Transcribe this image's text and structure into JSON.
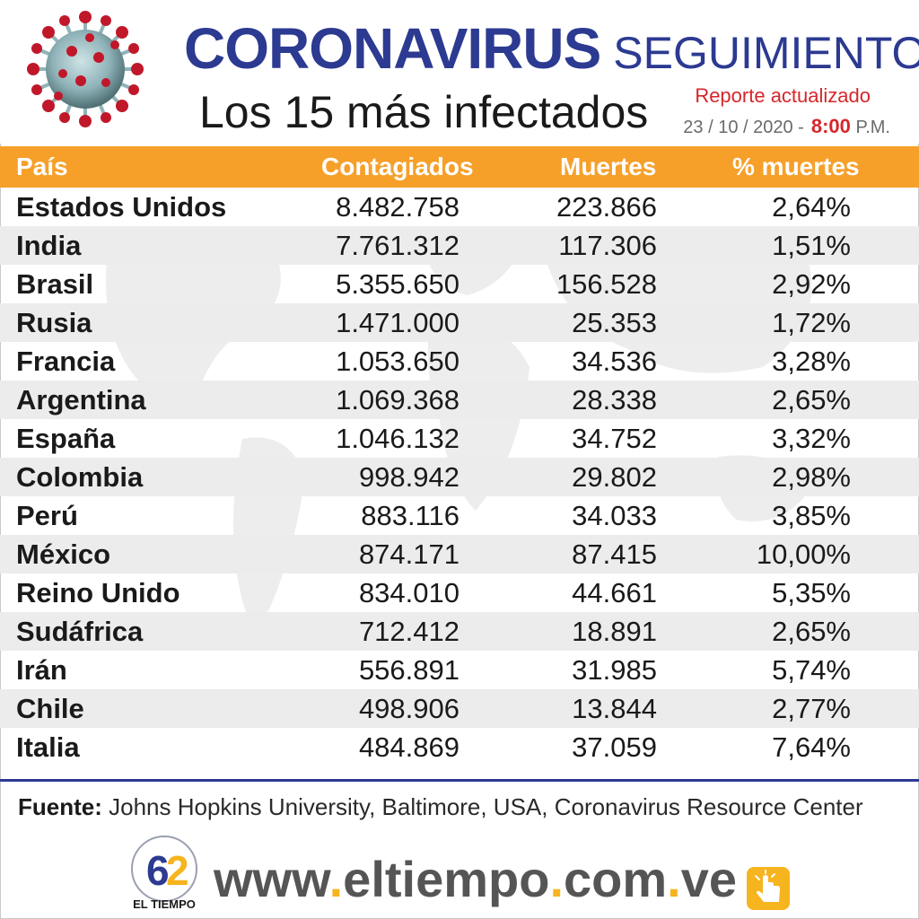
{
  "header": {
    "title_main": "Coronavirus",
    "title_secondary": "seguimiento",
    "subtitle": "Los 15 más infectados",
    "report_label": "Reporte actualizado",
    "date": "23 / 10 / 2020 -",
    "time": "8:00",
    "ampm": "P.M."
  },
  "table": {
    "columns": [
      "País",
      "Contagiados",
      "Muertes",
      "% muertes"
    ],
    "rows": [
      {
        "country": "Estados Unidos",
        "cases": "8.482.758",
        "deaths": "223.866",
        "pct": "2,64%"
      },
      {
        "country": "India",
        "cases": "7.761.312",
        "deaths": "117.306",
        "pct": "1,51%"
      },
      {
        "country": "Brasil",
        "cases": "5.355.650",
        "deaths": "156.528",
        "pct": "2,92%"
      },
      {
        "country": "Rusia",
        "cases": "1.471.000",
        "deaths": "25.353",
        "pct": "1,72%"
      },
      {
        "country": "Francia",
        "cases": "1.053.650",
        "deaths": "34.536",
        "pct": "3,28%"
      },
      {
        "country": "Argentina",
        "cases": "1.069.368",
        "deaths": "28.338",
        "pct": "2,65%"
      },
      {
        "country": "España",
        "cases": "1.046.132",
        "deaths": "34.752",
        "pct": "3,32%"
      },
      {
        "country": "Colombia",
        "cases": "998.942",
        "deaths": "29.802",
        "pct": "2,98%"
      },
      {
        "country": "Perú",
        "cases": "883.116",
        "deaths": "34.033",
        "pct": "3,85%"
      },
      {
        "country": "México",
        "cases": "874.171",
        "deaths": "87.415",
        "pct": "10,00%"
      },
      {
        "country": "Reino Unido",
        "cases": "834.010",
        "deaths": "44.661",
        "pct": "5,35%"
      },
      {
        "country": "Sudáfrica",
        "cases": "712.412",
        "deaths": "18.891",
        "pct": "2,65%"
      },
      {
        "country": "Irán",
        "cases": "556.891",
        "deaths": "31.985",
        "pct": "5,74%"
      },
      {
        "country": "Chile",
        "cases": "498.906",
        "deaths": "13.844",
        "pct": "2,77%"
      },
      {
        "country": "Italia",
        "cases": "484.869",
        "deaths": "37.059",
        "pct": "7,64%"
      }
    ]
  },
  "source": {
    "label": "Fuente:",
    "text": "Johns Hopkins University, Baltimore, USA, Coronavirus Resource Center"
  },
  "footer": {
    "logo_number": "62",
    "logo_name": "EL TIEMPO",
    "url_parts": [
      "www",
      ".",
      "eltiempo",
      ".",
      "com",
      ".",
      "ve"
    ]
  },
  "colors": {
    "title_blue": "#2c3a91",
    "header_orange": "#f6a02a",
    "accent_red": "#d6262a",
    "url_gray": "#555555",
    "url_dot": "#f6b41e"
  },
  "icons": [
    "coronavirus-icon",
    "world-map-background",
    "el-tiempo-logo",
    "tap-hand-icon"
  ]
}
